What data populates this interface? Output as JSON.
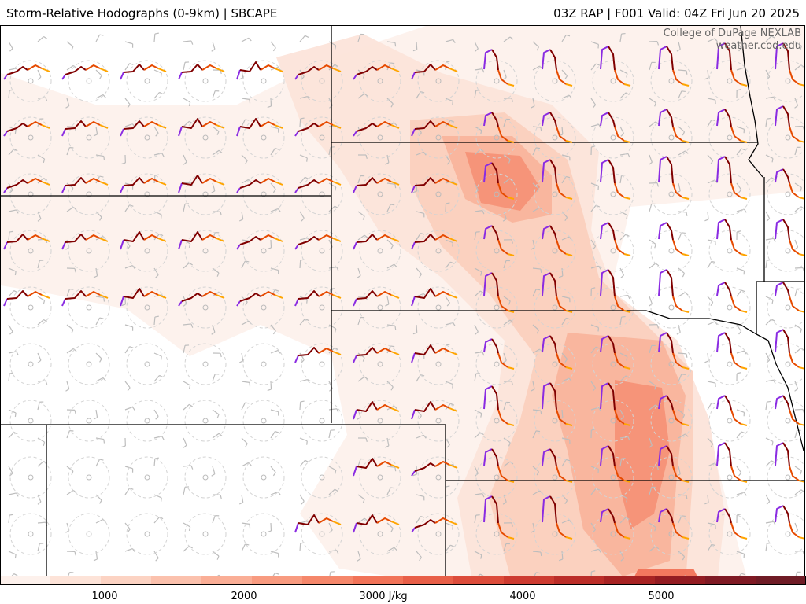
{
  "header": {
    "title": "Storm-Relative Hodographs (0-9km) | SBCAPE",
    "run_info": "03Z RAP | F001 Valid: 04Z Fri Jun 20 2025"
  },
  "credit": {
    "line1": "College of DuPage NEXLAB",
    "line2": "weather.cod.edu"
  },
  "colorbar": {
    "labels": [
      "1000",
      "2000",
      "3000 J/kg",
      "4000",
      "5000"
    ],
    "colors": [
      "#fdf1ec",
      "#fde3d8",
      "#fcd3c3",
      "#fbc1ad",
      "#faae96",
      "#f89b80",
      "#f5876b",
      "#f17358",
      "#e85f48",
      "#dc4c3b",
      "#cd3b30",
      "#bb2d28",
      "#a72323",
      "#931c22",
      "#7f1a24",
      "#6f1c26"
    ]
  },
  "map": {
    "state_border_color": "#000000",
    "hodograph_layer_colors": [
      "#8a2be2",
      "#800000",
      "#e64a00",
      "#ffa500"
    ],
    "cape_cell_colors": [
      "#fdf1ec",
      "#fce4da",
      "#fbd0be",
      "#f9b49c",
      "#f59277",
      "#f17358"
    ]
  }
}
